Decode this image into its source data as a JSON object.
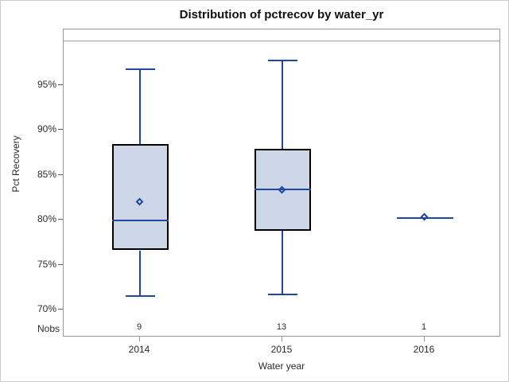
{
  "window": {
    "background": "#ffffff",
    "border": "#c6cacc"
  },
  "colors": {
    "box_fill": "#ccd6e6",
    "box_border": "#000000",
    "line": "#1f46a0",
    "frame": "#939aa1",
    "tick": "#5a5a5a",
    "text": "#2b2b2b",
    "title_text": "#101010"
  },
  "chart_data": {
    "type": "boxplot",
    "title": "Distribution of pctrecov by water_yr",
    "xlabel": "Water year",
    "ylabel": "Pct Recovery",
    "nobs_row_label": "Nobs",
    "categories": [
      "2014",
      "2015",
      "2016"
    ],
    "nobs": [
      "9",
      "13",
      "1"
    ],
    "y_ticks": [
      {
        "value": 95,
        "label": "95%"
      },
      {
        "value": 90,
        "label": "90%"
      },
      {
        "value": 85,
        "label": "85%"
      },
      {
        "value": 80,
        "label": "80%"
      },
      {
        "value": 75,
        "label": "75%"
      },
      {
        "value": 70,
        "label": "70%"
      }
    ],
    "ylim": [
      66.9,
      101.2
    ],
    "reference_line": 100,
    "grid": false,
    "legend": "none",
    "series": [
      {
        "category": "2014",
        "whisker_low": 71.6,
        "q1": 76.6,
        "median": 80.0,
        "q3": 88.4,
        "whisker_high": 96.9,
        "mean": 82.0,
        "n": 9
      },
      {
        "category": "2015",
        "whisker_low": 71.8,
        "q1": 78.8,
        "median": 83.5,
        "q3": 87.9,
        "whisker_high": 97.8,
        "mean": 83.3,
        "n": 13
      },
      {
        "category": "2016",
        "whisker_low": 80.3,
        "q1": 80.3,
        "median": 80.3,
        "q3": 80.3,
        "whisker_high": 80.3,
        "mean": 80.3,
        "n": 1
      }
    ]
  }
}
